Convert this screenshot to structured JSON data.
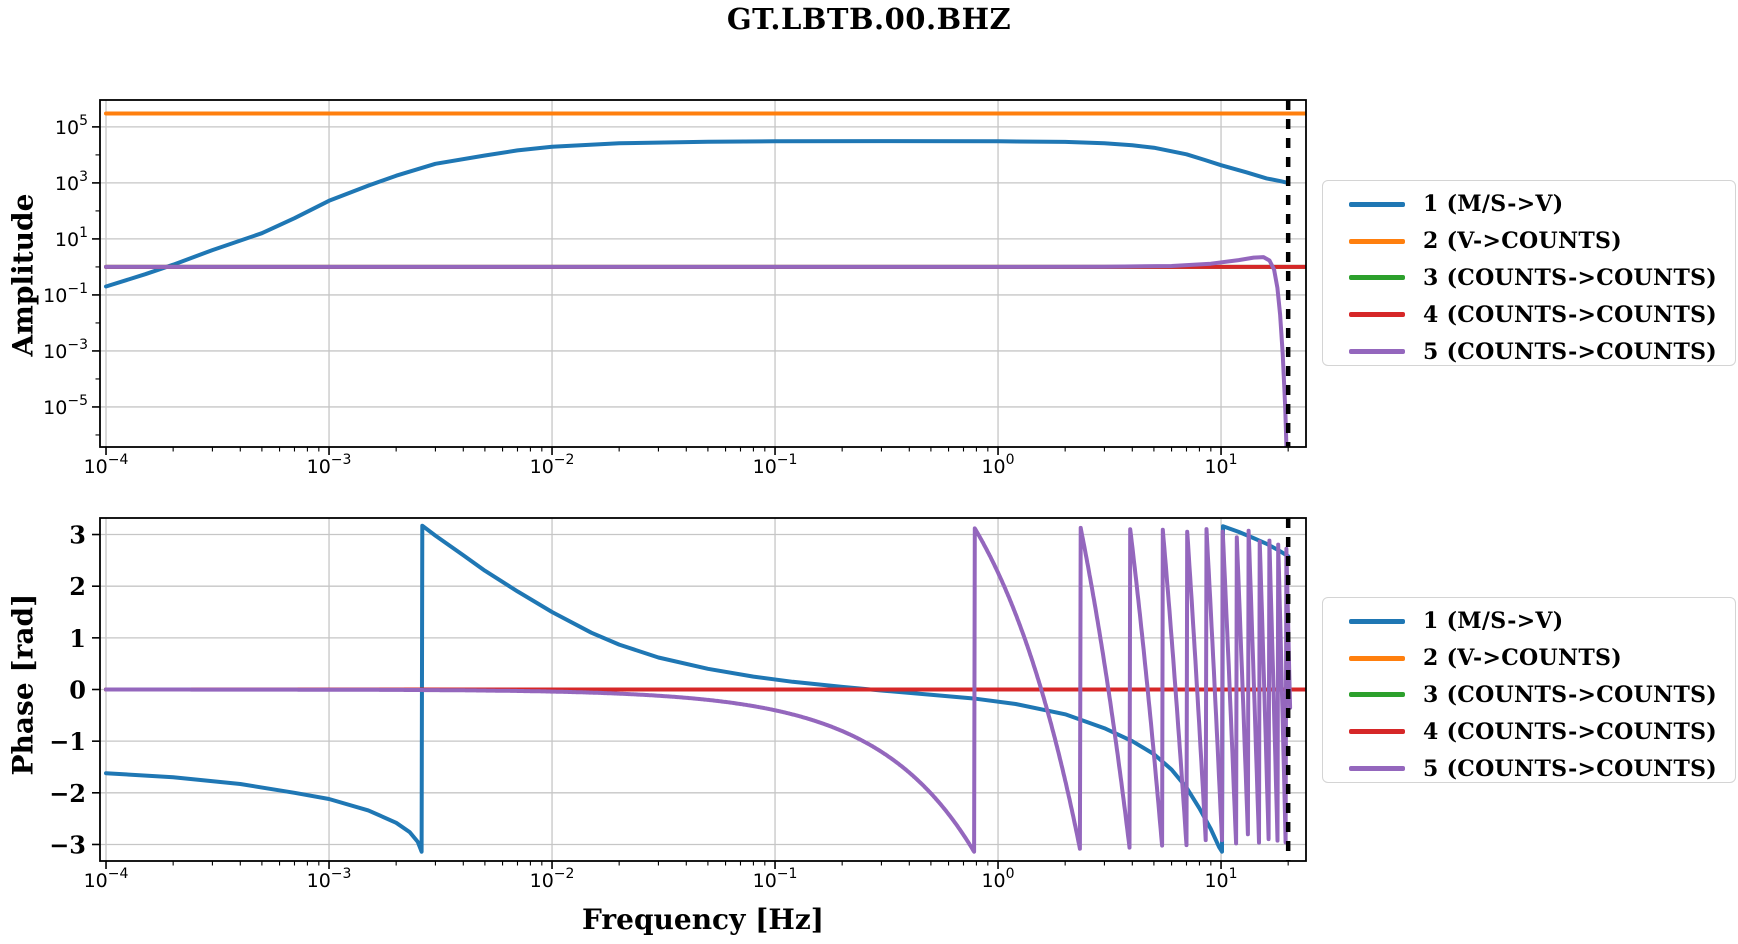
{
  "title": "GT.LBTB.00.BHZ",
  "colors": {
    "blue": "#1f77b4",
    "orange": "#ff7f0e",
    "green": "#2ca02c",
    "red": "#d62728",
    "purple": "#9467bd",
    "grid": "#c6c6c6",
    "frame": "#000000",
    "nyquist_line": "#000000"
  },
  "legend": {
    "entries": [
      {
        "label": "1 (M/S->V)",
        "color": "#1f77b4"
      },
      {
        "label": "2 (V->COUNTS)",
        "color": "#ff7f0e"
      },
      {
        "label": "3 (COUNTS->COUNTS)",
        "color": "#2ca02c"
      },
      {
        "label": "4 (COUNTS->COUNTS)",
        "color": "#d62728"
      },
      {
        "label": "5 (COUNTS->COUNTS)",
        "color": "#9467bd"
      }
    ]
  },
  "labels": {
    "amplitude": "Amplitude",
    "phase": "Phase [rad]",
    "frequency": "Frequency [Hz]"
  },
  "chart_data": [
    {
      "type": "line",
      "name": "amplitude-response",
      "x_scale": "log",
      "y_scale": "log",
      "ylabel": "Amplitude",
      "xlim_exp": [
        -4.027,
        1.381
      ],
      "ylim_exp": [
        -6.43,
        5.96
      ],
      "x_tick_exps": [
        -4,
        -3,
        -2,
        -1,
        0,
        1
      ],
      "y_tick_exps": [
        5,
        3,
        1,
        -1,
        -3,
        -5
      ],
      "grid": true,
      "nyquist_hz": 20,
      "series": [
        {
          "name": "1 (M/S->V)",
          "color": "#1f77b4",
          "points": [
            [
              0.0001,
              0.2
            ],
            [
              0.00015,
              0.55
            ],
            [
              0.0002,
              1.2
            ],
            [
              0.0003,
              4
            ],
            [
              0.0005,
              16
            ],
            [
              0.0007,
              55
            ],
            [
              0.001,
              230
            ],
            [
              0.0015,
              800
            ],
            [
              0.002,
              1800
            ],
            [
              0.003,
              4800
            ],
            [
              0.005,
              9500
            ],
            [
              0.007,
              14500
            ],
            [
              0.01,
              19500
            ],
            [
              0.02,
              26000
            ],
            [
              0.05,
              29500
            ],
            [
              0.1,
              30500
            ],
            [
              0.3,
              31000
            ],
            [
              1,
              30500
            ],
            [
              2,
              29000
            ],
            [
              3,
              26000
            ],
            [
              4,
              22000
            ],
            [
              5,
              18000
            ],
            [
              7,
              10500
            ],
            [
              8.5,
              6500
            ],
            [
              10,
              4300
            ],
            [
              13,
              2400
            ],
            [
              16,
              1450
            ],
            [
              18.5,
              1150
            ],
            [
              20,
              1000
            ]
          ]
        },
        {
          "name": "2 (V->COUNTS)",
          "color": "#ff7f0e",
          "points": [
            [
              0.0001,
              300000
            ],
            [
              24,
              300000
            ]
          ]
        },
        {
          "name": "3 (COUNTS->COUNTS)",
          "color": "#2ca02c",
          "points": [
            [
              0.0001,
              1
            ],
            [
              24,
              1
            ]
          ]
        },
        {
          "name": "4 (COUNTS->COUNTS)",
          "color": "#d62728",
          "points": [
            [
              0.0001,
              1
            ],
            [
              24,
              1
            ]
          ]
        },
        {
          "name": "5 (COUNTS->COUNTS)",
          "color": "#9467bd",
          "points": [
            [
              0.0001,
              1
            ],
            [
              1,
              1
            ],
            [
              3,
              1.02
            ],
            [
              6,
              1.08
            ],
            [
              9,
              1.3
            ],
            [
              12,
              1.75
            ],
            [
              14,
              2.15
            ],
            [
              15.5,
              2.25
            ],
            [
              16.5,
              1.7
            ],
            [
              17.3,
              0.8
            ],
            [
              17.9,
              0.18
            ],
            [
              18.4,
              0.02
            ],
            [
              18.9,
              0.0008
            ],
            [
              19.4,
              1e-05
            ],
            [
              19.8,
              5e-08
            ]
          ]
        }
      ]
    },
    {
      "type": "line",
      "name": "phase-response",
      "x_scale": "log",
      "y_scale": "linear",
      "ylabel": "Phase [rad]",
      "xlabel": "Frequency [Hz]",
      "xlim_exp": [
        -4.027,
        1.381
      ],
      "ylim": [
        -3.32,
        3.32
      ],
      "x_tick_exps": [
        -4,
        -3,
        -2,
        -1,
        0,
        1
      ],
      "y_ticks": [
        3,
        2,
        1,
        0,
        -1,
        -2,
        -3
      ],
      "grid": true,
      "nyquist_hz": 20,
      "series": [
        {
          "name": "1 (M/S->V)",
          "color": "#1f77b4",
          "points": [
            [
              0.0001,
              -1.62
            ],
            [
              0.0002,
              -1.7
            ],
            [
              0.0004,
              -1.83
            ],
            [
              0.0007,
              -2.0
            ],
            [
              0.001,
              -2.12
            ],
            [
              0.0015,
              -2.34
            ],
            [
              0.002,
              -2.58
            ],
            [
              0.0023,
              -2.76
            ],
            [
              0.0025,
              -2.95
            ],
            [
              0.0026,
              -3.14
            ],
            [
              0.00262,
              3.17
            ],
            [
              0.003,
              2.98
            ],
            [
              0.004,
              2.6
            ],
            [
              0.005,
              2.3
            ],
            [
              0.007,
              1.9
            ],
            [
              0.01,
              1.5
            ],
            [
              0.015,
              1.1
            ],
            [
              0.02,
              0.87
            ],
            [
              0.03,
              0.62
            ],
            [
              0.05,
              0.4
            ],
            [
              0.08,
              0.25
            ],
            [
              0.12,
              0.15
            ],
            [
              0.2,
              0.05
            ],
            [
              0.3,
              -0.02
            ],
            [
              0.5,
              -0.1
            ],
            [
              0.8,
              -0.18
            ],
            [
              1.2,
              -0.28
            ],
            [
              2,
              -0.48
            ],
            [
              3,
              -0.75
            ],
            [
              4,
              -1.0
            ],
            [
              5,
              -1.25
            ],
            [
              6,
              -1.55
            ],
            [
              7,
              -1.9
            ],
            [
              8,
              -2.3
            ],
            [
              9,
              -2.7
            ],
            [
              9.8,
              -3.05
            ],
            [
              10.1,
              -3.14
            ],
            [
              10.2,
              3.16
            ],
            [
              12,
              3.05
            ],
            [
              14,
              2.93
            ],
            [
              16,
              2.82
            ],
            [
              18,
              2.7
            ],
            [
              20,
              2.58
            ]
          ]
        },
        {
          "name": "2 (V->COUNTS)",
          "color": "#ff7f0e",
          "points": [
            [
              0.0001,
              0
            ],
            [
              24,
              0
            ]
          ]
        },
        {
          "name": "3 (COUNTS->COUNTS)",
          "color": "#2ca02c",
          "points": [
            [
              0.0001,
              0
            ],
            [
              24,
              0
            ]
          ]
        },
        {
          "name": "4 (COUNTS->COUNTS)",
          "color": "#d62728",
          "points": [
            [
              0.0001,
              0
            ],
            [
              24,
              0
            ]
          ]
        },
        {
          "name": "5 (COUNTS->COUNTS)",
          "color": "#9467bd",
          "generator": {
            "model": "wrapped_delay_phase",
            "delay_s": 0.64,
            "f_start": 0.0001,
            "f_end": 20.4,
            "wrap_frequencies_hz": [
              0.78,
              2.34,
              3.91,
              5.47,
              7.03,
              8.59,
              10.16,
              11.72,
              13.28,
              14.84,
              16.41,
              17.97,
              19.53
            ]
          }
        }
      ]
    }
  ]
}
